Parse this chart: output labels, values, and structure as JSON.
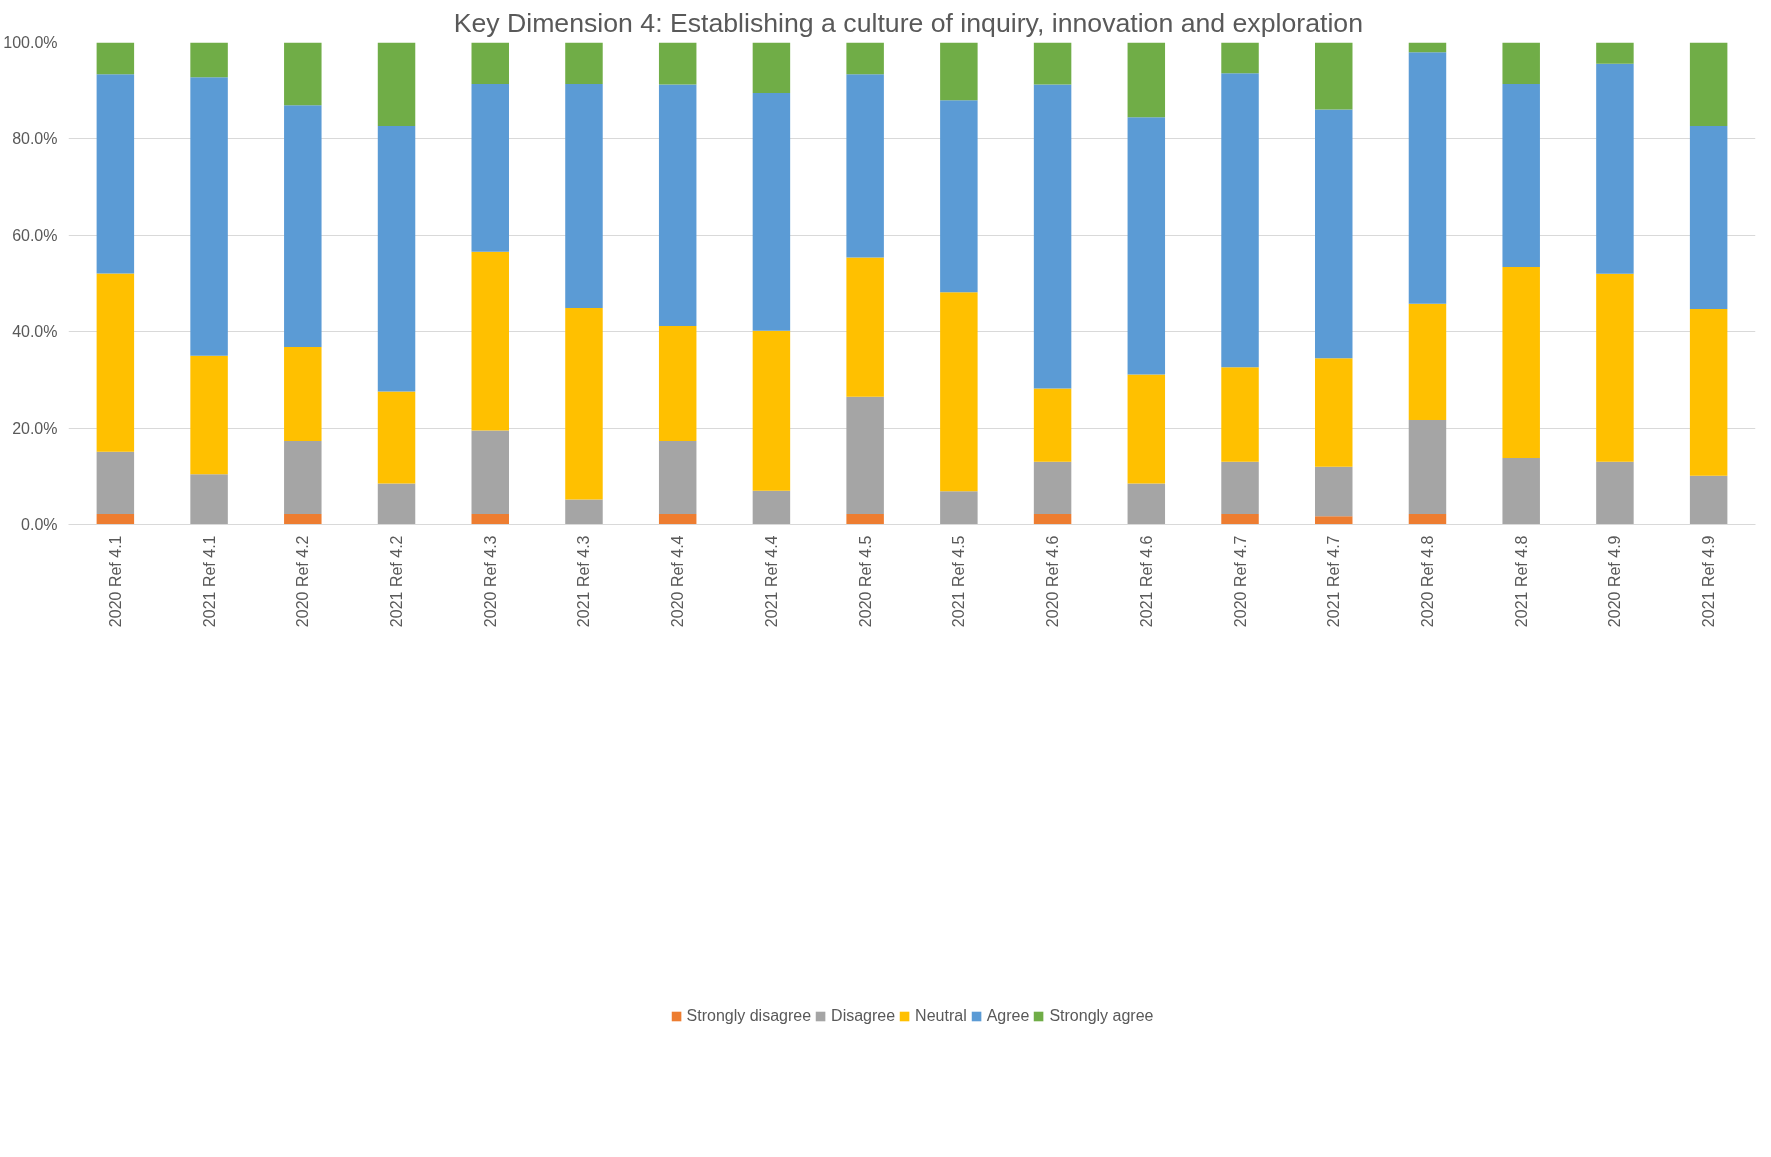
{
  "chart_data": {
    "type": "bar",
    "stacked": true,
    "title": "Key Dimension  4: Establishing a culture of inquiry, innovation and exploration",
    "categories": [
      "2020 Ref 4.1",
      "2021 Ref 4.1",
      "2020 Ref 4.2",
      "2021 Ref 4.2",
      "2020 Ref 4.3",
      "2021 Ref 4.3",
      "2020 Ref 4.4",
      "2021 Ref 4.4",
      "2020 Ref 4.5",
      "2021 Ref 4.5",
      "2020 Ref 4.6",
      "2021 Ref 4.6",
      "2020 Ref 4.7",
      "2021 Ref 4.7",
      "2020 Ref 4.8",
      "2021 Ref 4.8",
      "2020 Ref 4.9",
      "2021 Ref 4.9"
    ],
    "series": [
      {
        "name": "Strongly disagree",
        "color": "#ed7d31",
        "values": [
          2.2,
          0,
          2.2,
          0,
          2.2,
          0,
          2.2,
          0,
          2.2,
          0,
          2.2,
          0,
          2.2,
          1.7,
          2.2,
          0,
          0,
          0
        ]
      },
      {
        "name": "Disagree",
        "color": "#a5a5a5",
        "values": [
          12.9,
          10.4,
          15.1,
          8.5,
          17.3,
          5.2,
          15.1,
          7.0,
          24.3,
          6.9,
          10.8,
          8.5,
          10.8,
          10.3,
          19.5,
          13.8,
          13.0,
          10.1
        ]
      },
      {
        "name": "Neutral",
        "color": "#ffc000",
        "values": [
          37.0,
          24.6,
          19.5,
          19.1,
          37.1,
          39.7,
          23.9,
          33.2,
          28.9,
          41.3,
          15.2,
          22.6,
          19.6,
          22.5,
          24.1,
          39.6,
          39.0,
          34.6
        ]
      },
      {
        "name": "Agree",
        "color": "#5b9bd5",
        "values": [
          41.3,
          57.8,
          50.2,
          55.1,
          34.8,
          46.5,
          50.1,
          49.3,
          38.0,
          39.8,
          63.1,
          53.4,
          61.0,
          51.6,
          52.2,
          38.0,
          43.6,
          38.0
        ]
      },
      {
        "name": "Strongly agree",
        "color": "#70ad47",
        "values": [
          6.6,
          7.2,
          13.0,
          17.3,
          8.6,
          8.6,
          8.7,
          10.5,
          6.6,
          12.0,
          8.7,
          15.5,
          6.4,
          13.9,
          2.0,
          8.6,
          4.4,
          17.3
        ]
      }
    ],
    "ylim": [
      0,
      100
    ],
    "yticks": [
      {
        "value": 0,
        "label": "0.0%"
      },
      {
        "value": 20,
        "label": "20.0%"
      },
      {
        "value": 40,
        "label": "40.0%"
      },
      {
        "value": 60,
        "label": "60.0%"
      },
      {
        "value": 80,
        "label": "80.0%"
      },
      {
        "value": 100,
        "label": "100.0%"
      }
    ],
    "grid": "y",
    "legend": "bottom"
  }
}
